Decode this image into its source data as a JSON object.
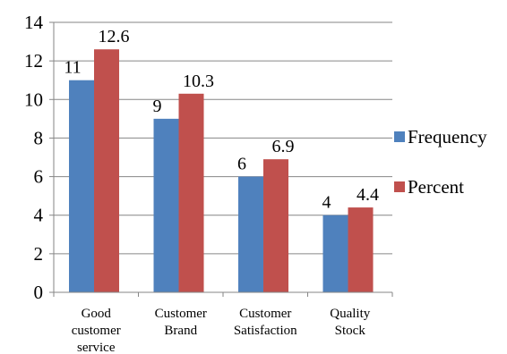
{
  "chart_data": {
    "type": "bar",
    "title": "",
    "xlabel": "",
    "ylabel": "",
    "ylim": [
      0,
      14
    ],
    "yticks": [
      0,
      2,
      4,
      6,
      8,
      10,
      12,
      14
    ],
    "grid": true,
    "legend_position": "right",
    "categories": [
      [
        "Good",
        "customer",
        "service"
      ],
      [
        "Customer",
        "Brand"
      ],
      [
        "Customer",
        "Satisfaction"
      ],
      [
        "Quality",
        "Stock"
      ]
    ],
    "series": [
      {
        "name": "Frequency",
        "color": "#4F81BD",
        "values": [
          11,
          9,
          6,
          4
        ],
        "labels": [
          "11",
          "9",
          "6",
          "4"
        ]
      },
      {
        "name": "Percent",
        "color": "#C0504D",
        "values": [
          12.6,
          10.3,
          6.9,
          4.4
        ],
        "labels": [
          "12.6",
          "10.3",
          "6.9",
          "4.4"
        ]
      }
    ]
  }
}
